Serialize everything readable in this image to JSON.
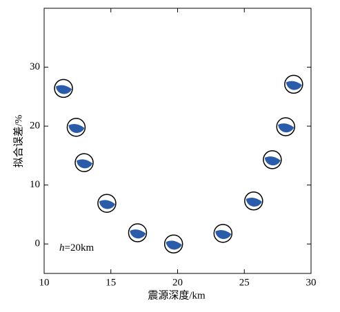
{
  "chart_data": {
    "type": "scatter",
    "x_label": "震源深度/km",
    "y_label": "拟合误差/%",
    "annotation": {
      "variable": "h",
      "text": "=20km"
    },
    "x": [
      11.45,
      12.4,
      13.0,
      14.7,
      17.0,
      19.7,
      23.4,
      25.7,
      27.1,
      28.1,
      28.7
    ],
    "values": [
      26.4,
      19.8,
      13.8,
      6.9,
      1.9,
      0,
      1.8,
      7.3,
      14.3,
      19.9,
      27.1
    ],
    "color": "#2a5caa",
    "xlim": [
      10,
      30
    ],
    "xticks": [
      10,
      15,
      20,
      25,
      30
    ],
    "ylim": [
      -5,
      40
    ],
    "yticks": [
      0,
      10,
      20,
      30
    ]
  }
}
